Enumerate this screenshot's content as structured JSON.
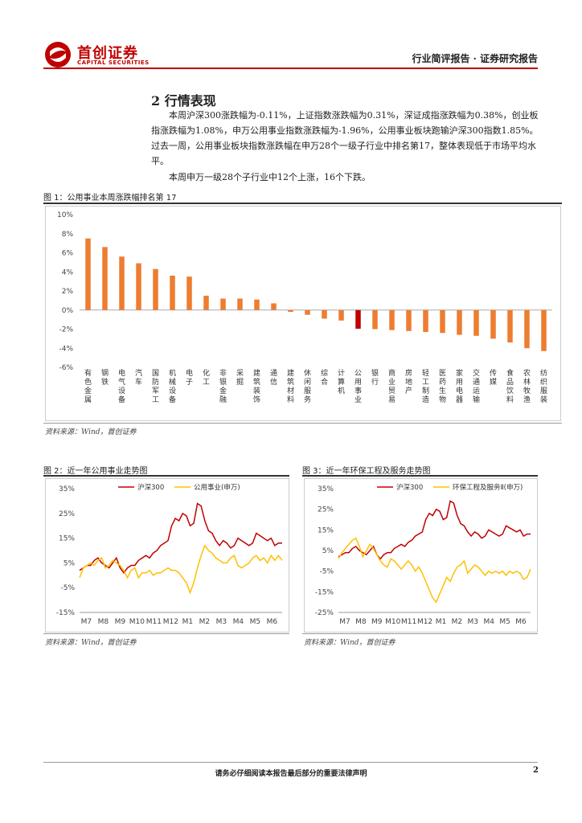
{
  "header": {
    "logo_cn": "首创证券",
    "logo_en": "CAPITAL SECURITIES",
    "report_type": "行业简评报告 · 证券研究报告"
  },
  "section": {
    "title": "2 行情表现",
    "paragraphs": [
      "本周沪深300涨跌幅为-0.11%，上证指数涨跌幅为0.31%，深证成指涨跌幅为0.38%，创业板指涨跌幅为1.08%，申万公用事业指数涨跌幅为-1.96%，公用事业板块跑输沪深300指数1.85%。过去一周，公用事业板块指数涨跌幅在申万28个一级子行业中排名第17，整体表现低于市场平均水平。",
      "本周申万一级28个子行业中12个上涨，16个下跌。"
    ]
  },
  "figures": {
    "fig1_title": "图 1：公用事业本周涨跌幅排名第 17",
    "fig2_title": "图 2：近一年公用事业走势图",
    "fig3_title": "图 3：近一年环保工程及服务走势图",
    "source": "资料来源：Wind，首创证券"
  },
  "colors": {
    "bar": "#ed7d31",
    "highlight": "#c00000",
    "line_hs300": "#c00000",
    "line_sector": "#ffc000",
    "brand": "#c00000"
  },
  "chart_data": [
    {
      "type": "bar",
      "categories": [
        "有色金属",
        "钢铁",
        "电气设备",
        "汽车",
        "国防军工",
        "机械设备",
        "电子",
        "化工",
        "非银金融",
        "采掘",
        "建筑装饰",
        "通信",
        "建筑材料",
        "休闲服务",
        "综合",
        "计算机",
        "公用事业",
        "银行",
        "商业贸易",
        "房地产",
        "轻工制造",
        "医药生物",
        "家用电器",
        "交通运输",
        "传媒",
        "食品饮料",
        "农林牧渔",
        "纺织服装"
      ],
      "values": [
        7.5,
        6.6,
        5.6,
        4.9,
        4.3,
        3.6,
        3.5,
        1.5,
        1.2,
        1.2,
        1.1,
        0.7,
        -0.2,
        -0.5,
        -0.9,
        -1.1,
        -1.96,
        -2.0,
        -2.1,
        -2.2,
        -2.3,
        -2.4,
        -2.6,
        -2.7,
        -3.0,
        -3.4,
        -4.0,
        -4.3
      ],
      "highlight": "公用事业",
      "yticks": [
        "10%",
        "8%",
        "6%",
        "4%",
        "2%",
        "0%",
        "-2%",
        "-4%",
        "-6%"
      ],
      "ylim": [
        -6,
        10
      ]
    },
    {
      "type": "line",
      "xticks": [
        "M7",
        "M8",
        "M9",
        "M10",
        "M11",
        "M12",
        "M1",
        "M2",
        "M3",
        "M4",
        "M5",
        "M6"
      ],
      "yticks": [
        "35%",
        "25%",
        "15%",
        "5%",
        "-5%",
        "-15%"
      ],
      "ylim": [
        -15,
        35
      ],
      "series": [
        {
          "name": "沪深300",
          "values": [
            2,
            3,
            4,
            4,
            6,
            7,
            5,
            4,
            3,
            5,
            7,
            3,
            1,
            3,
            4,
            4,
            6,
            7,
            8,
            7,
            9,
            10,
            12,
            13,
            14,
            20,
            23,
            22,
            25,
            24,
            20,
            21,
            29,
            28,
            22,
            18,
            17,
            14,
            12,
            14,
            13,
            11,
            12,
            15,
            14,
            13,
            12,
            13,
            17,
            16,
            15,
            14,
            15,
            12,
            13,
            13
          ]
        },
        {
          "name": "公用事业(申万)",
          "values": [
            -1,
            3,
            4,
            5,
            4,
            6,
            7,
            3,
            4,
            6,
            5,
            4,
            2,
            -1,
            2,
            3,
            -1,
            1,
            1,
            2,
            0,
            1,
            1,
            2,
            3,
            2,
            2,
            1,
            -1,
            -3,
            -7,
            -3,
            3,
            8,
            12,
            10,
            9,
            7,
            6,
            5,
            5,
            7,
            8,
            4,
            3,
            4,
            5,
            7,
            8,
            6,
            7,
            5,
            8,
            6,
            8,
            6
          ]
        }
      ]
    },
    {
      "type": "line",
      "xticks": [
        "M7",
        "M8",
        "M9",
        "M10",
        "M11",
        "M12",
        "M1",
        "M2",
        "M3",
        "M4",
        "M5",
        "M6"
      ],
      "yticks": [
        "35%",
        "25%",
        "15%",
        "5%",
        "-5%",
        "-15%",
        "-25%"
      ],
      "ylim": [
        -25,
        35
      ],
      "series": [
        {
          "name": "沪深300",
          "values": [
            2,
            3,
            4,
            4,
            6,
            7,
            5,
            4,
            3,
            5,
            7,
            3,
            1,
            3,
            4,
            4,
            6,
            7,
            8,
            7,
            9,
            10,
            12,
            13,
            14,
            20,
            23,
            22,
            25,
            24,
            20,
            21,
            29,
            28,
            22,
            18,
            17,
            14,
            12,
            14,
            13,
            11,
            12,
            15,
            14,
            13,
            12,
            13,
            17,
            16,
            15,
            14,
            15,
            12,
            13,
            13
          ]
        },
        {
          "name": "环保工程及服务Ⅱ(申万)",
          "values": [
            1,
            4,
            6,
            8,
            10,
            11,
            7,
            2,
            5,
            8,
            6,
            3,
            0,
            -2,
            -3,
            1,
            0,
            -2,
            -4,
            -2,
            0,
            -2,
            -5,
            -3,
            -6,
            -10,
            -14,
            -18,
            -20,
            -16,
            -12,
            -8,
            -10,
            -6,
            -3,
            -2,
            0,
            -6,
            -4,
            -2,
            -3,
            -5,
            -7,
            -5,
            -6,
            -5,
            -6,
            -5,
            -7,
            -5,
            -6,
            -5,
            -6,
            -9,
            -8,
            -4
          ]
        }
      ]
    }
  ]
}
